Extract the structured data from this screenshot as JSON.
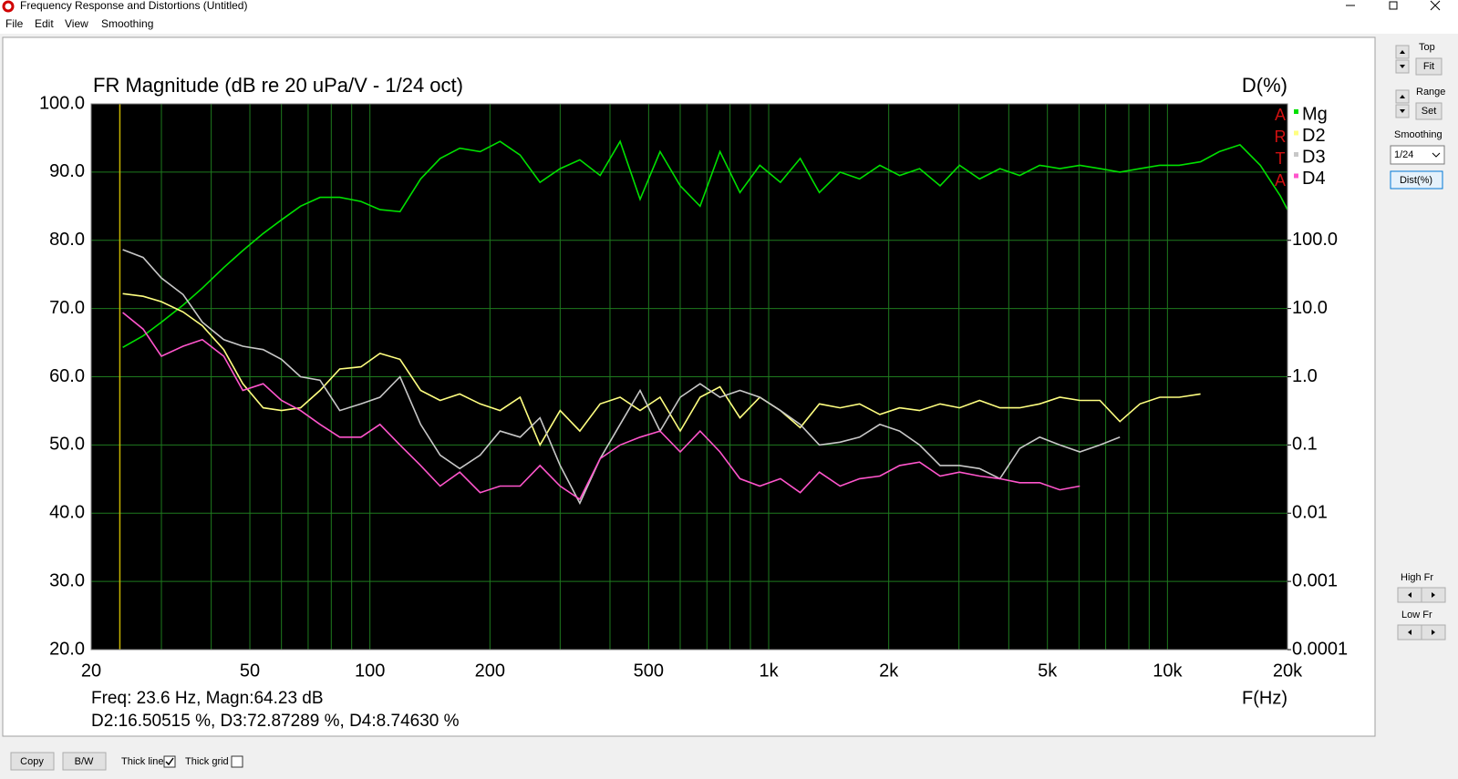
{
  "window": {
    "title": "Frequency Response and Distortions (Untitled)",
    "menu": [
      "File",
      "Edit",
      "View",
      "Smoothing"
    ]
  },
  "chart_data": {
    "type": "line",
    "title": "FR Magnitude (dB re 20 uPa/V - 1/24 oct)",
    "y2label": "D(%)",
    "xlabel": "F(Hz)",
    "logo": "ARTA",
    "background": "#000000",
    "grid": true,
    "grid_color": "#1e7a1e",
    "xlog": true,
    "y2log": true,
    "xlim": [
      20,
      20000
    ],
    "xticks": [
      20,
      50,
      100,
      200,
      500,
      {
        "value": 1000,
        "label": "1k"
      },
      {
        "value": 2000,
        "label": "2k"
      },
      {
        "value": 5000,
        "label": "5k"
      },
      {
        "value": 10000,
        "label": "10k"
      },
      {
        "value": 20000,
        "label": "20k"
      }
    ],
    "x_grid": [
      20,
      30,
      40,
      50,
      60,
      70,
      80,
      90,
      100,
      200,
      300,
      400,
      500,
      600,
      700,
      800,
      900,
      1000,
      2000,
      3000,
      4000,
      5000,
      6000,
      7000,
      8000,
      9000,
      10000,
      20000
    ],
    "ylim": [
      20,
      100
    ],
    "yticks": [
      {
        "value": 20,
        "label": "20.0"
      },
      {
        "value": 30,
        "label": "30.0"
      },
      {
        "value": 40,
        "label": "40.0"
      },
      {
        "value": 50,
        "label": "50.0"
      },
      {
        "value": 60,
        "label": "60.0"
      },
      {
        "value": 70,
        "label": "70.0"
      },
      {
        "value": 80,
        "label": "80.0"
      },
      {
        "value": 90,
        "label": "90.0"
      },
      {
        "value": 100,
        "label": "100.0"
      }
    ],
    "y2lim": [
      0.0001,
      10000
    ],
    "y2ticks": [
      0.0001,
      0.001,
      0.01,
      0.1,
      {
        "value": 1,
        "label": "1.0"
      },
      {
        "value": 10,
        "label": "10.0"
      },
      {
        "value": 100,
        "label": "100.0"
      }
    ],
    "cursor_x": 23.6,
    "cursor_color": "#c8b400",
    "x": [
      24,
      27,
      30,
      34,
      38,
      43,
      48,
      54,
      60,
      67,
      75,
      84,
      95,
      106,
      119,
      134,
      150,
      168,
      189,
      212,
      238,
      267,
      300,
      336,
      378,
      424,
      476,
      534,
      600,
      673,
      755,
      847,
      950,
      1070,
      1200,
      1340,
      1510,
      1690,
      1900,
      2130,
      2390,
      2690,
      3010,
      3380,
      3800,
      4260,
      4780,
      5370,
      6030,
      6770,
      7600,
      8530,
      9570,
      10700,
      12100,
      13500,
      15200,
      17100,
      19200,
      20000
    ],
    "series": [
      {
        "name": "Mg",
        "color": "#00e000",
        "values": [
          64.3,
          66,
          68,
          70.5,
          73,
          76,
          78.5,
          81,
          83,
          85,
          86.3,
          86.3,
          85.7,
          84.5,
          84.2,
          89,
          92,
          93.5,
          93,
          94.5,
          92.5,
          88.5,
          90.5,
          91.8,
          89.5,
          94.5,
          86,
          93,
          88,
          85,
          93,
          87,
          91,
          88.5,
          92,
          87,
          90,
          89,
          91,
          89.5,
          90.5,
          88,
          91,
          89,
          90.5,
          89.5,
          91,
          90.5,
          91,
          90.5,
          90,
          90.5,
          91,
          91,
          91.5,
          93,
          94,
          91,
          86.5,
          84.5
        ]
      },
      {
        "name": "D2",
        "color": "#ffff80",
        "axis": "y2",
        "values": [
          16.5,
          15.1,
          12.6,
          8.9,
          5.6,
          2.5,
          0.79,
          0.35,
          0.32,
          0.35,
          0.63,
          1.3,
          1.4,
          2.2,
          1.8,
          0.63,
          0.45,
          0.56,
          0.4,
          0.32,
          0.5,
          0.1,
          0.32,
          0.16,
          0.4,
          0.5,
          0.32,
          0.5,
          0.16,
          0.5,
          0.71,
          0.25,
          0.5,
          0.32,
          0.18,
          0.4,
          0.35,
          0.4,
          0.28,
          0.35,
          0.32,
          0.4,
          0.35,
          0.45,
          0.35,
          0.35,
          0.4,
          0.5,
          0.45,
          0.45,
          0.22,
          0.4,
          0.5,
          0.5,
          0.56,
          null,
          null,
          null,
          null,
          null
        ]
      },
      {
        "name": "D3",
        "color": "#c8c8c8",
        "axis": "y2",
        "values": [
          72.9,
          56,
          28,
          16,
          6.3,
          3.5,
          2.8,
          2.5,
          1.8,
          1,
          0.89,
          0.32,
          0.4,
          0.5,
          1,
          0.2,
          0.071,
          0.045,
          0.071,
          0.16,
          0.13,
          0.25,
          0.05,
          0.014,
          0.063,
          0.2,
          0.63,
          0.16,
          0.5,
          0.79,
          0.5,
          0.63,
          0.5,
          0.32,
          0.2,
          0.1,
          0.11,
          0.13,
          0.2,
          0.16,
          0.1,
          0.05,
          0.05,
          0.045,
          0.032,
          0.089,
          0.13,
          0.1,
          0.079,
          0.1,
          0.13,
          null,
          null,
          null,
          null,
          null,
          null,
          null,
          null,
          null
        ]
      },
      {
        "name": "D4",
        "color": "#ff55cc",
        "axis": "y2",
        "values": [
          8.75,
          5,
          2,
          2.8,
          3.5,
          2,
          0.63,
          0.79,
          0.45,
          0.32,
          0.2,
          0.13,
          0.13,
          0.2,
          0.1,
          0.05,
          0.025,
          0.04,
          0.02,
          0.025,
          0.025,
          0.05,
          0.025,
          0.016,
          0.063,
          0.1,
          0.13,
          0.16,
          0.079,
          0.16,
          0.079,
          0.032,
          0.025,
          0.032,
          0.02,
          0.04,
          0.025,
          0.032,
          0.035,
          0.05,
          0.056,
          0.035,
          0.04,
          0.035,
          0.032,
          0.028,
          0.028,
          0.022,
          0.025,
          null,
          null,
          null,
          null,
          null,
          null,
          null,
          null,
          null,
          null,
          null
        ]
      }
    ]
  },
  "readout": [
    "Freq: 23.6 Hz, Magn:64.23 dB",
    "D2:16.50515 %, D3:72.87289 %, D4:8.74630 %"
  ],
  "side_panel": {
    "top": "Top",
    "fit": "Fit",
    "range": "Range",
    "set": "Set",
    "smoothing": "Smoothing",
    "smoothing_value": "1/24",
    "dist": "Dist(%)",
    "high_fr": "High Fr",
    "low_fr": "Low Fr"
  },
  "bottom_bar": {
    "copy": "Copy",
    "bw": "B/W",
    "thick_line": "Thick line",
    "thick_grid": "Thick grid"
  }
}
